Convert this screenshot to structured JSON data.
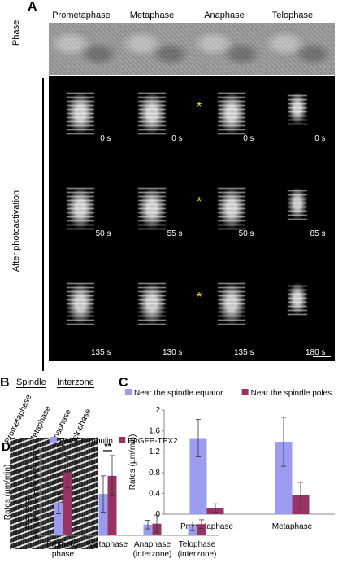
{
  "panelA": {
    "letter": "A",
    "phases": [
      "Prometaphase",
      "Metaphase",
      "Anaphase",
      "Telophase"
    ],
    "row_label_phase": "Phase",
    "row_label_after": "After photoactivation",
    "times": [
      [
        "0 s",
        "0 s",
        "0 s",
        "0 s"
      ],
      [
        "50 s",
        "55 s",
        "50 s",
        "85 s"
      ],
      [
        "135 s",
        "130 s",
        "135 s",
        "180 s"
      ]
    ],
    "star": "*"
  },
  "panelB": {
    "letter": "B",
    "spindle": "Spindle",
    "interzone": "Interzone",
    "phases": [
      "Prometaphase",
      "Metaphase",
      "Anaphase",
      "Telophase"
    ]
  },
  "chart_data": [
    {
      "panel": "C",
      "type": "bar",
      "ylabel": "Rates (µm/min)",
      "ylim": [
        0,
        2
      ],
      "yticks": [
        "0",
        "0.4",
        "0.8",
        "1.2",
        "1.6",
        "2"
      ],
      "categories": [
        "Prometaphase",
        "Metaphase"
      ],
      "series": [
        {
          "name": "Near the spindle equator",
          "color": "#9b9cf0",
          "values": [
            1.46,
            1.39
          ],
          "errors": [
            0.36,
            0.47
          ]
        },
        {
          "name": "Near the spindle poles",
          "color": "#993366",
          "values": [
            0.12,
            0.36
          ],
          "errors": [
            0.08,
            0.25
          ]
        }
      ]
    },
    {
      "panel": "D",
      "type": "bar",
      "ylabel": "Rates (µm/min)",
      "ylim": [
        0,
        2
      ],
      "yticks": [
        "0",
        "0.2",
        "0.4",
        "0.6",
        "0.8",
        "1",
        "1.2",
        "1.4",
        "1.6",
        "1.8",
        "2"
      ],
      "categories": [
        "Prometa-\nphase",
        "Metaphase",
        "Anaphase\n(interzone)",
        "Telophase\n(interzone)"
      ],
      "series": [
        {
          "name": "PAGFP-tubulin",
          "color": "#9b9cf0",
          "values": [
            0.76,
            0.96,
            0.25,
            0.21
          ],
          "errors": [
            0.26,
            0.42,
            0.1,
            0.1
          ]
        },
        {
          "name": "PAGFP-TPX2",
          "color": "#993366",
          "values": [
            1.46,
            1.38,
            0.27,
            0.26
          ],
          "errors": [
            0.36,
            0.47,
            0.2,
            0.1
          ]
        }
      ],
      "significance": [
        "*",
        "**"
      ]
    }
  ],
  "letters": {
    "C": "C",
    "D": "D"
  }
}
